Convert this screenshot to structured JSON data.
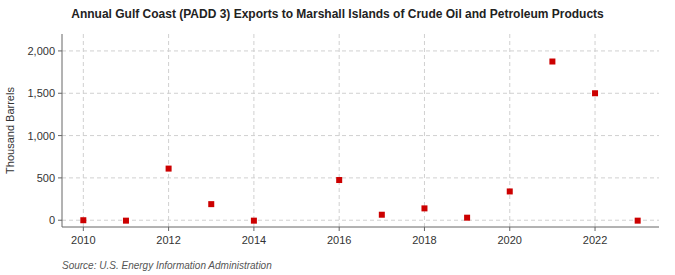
{
  "chart_data": {
    "type": "scatter",
    "title": "Annual Gulf Coast (PADD 3) Exports to Marshall Islands of Crude Oil and Petroleum Products",
    "ylabel": "Thousand Barrels",
    "source": "Source: U.S. Energy Information Administration",
    "x": [
      2010,
      2011,
      2012,
      2013,
      2014,
      2016,
      2017,
      2018,
      2019,
      2020,
      2021,
      2022,
      2023
    ],
    "values": [
      0,
      -5,
      610,
      190,
      -5,
      475,
      65,
      140,
      30,
      340,
      1875,
      1500,
      -5
    ],
    "color": "#cc0000",
    "marker": "square",
    "xlim": [
      2009.5,
      2023.5
    ],
    "ylim": [
      -80,
      2200
    ],
    "xticks": [
      2010,
      2012,
      2014,
      2016,
      2018,
      2020,
      2022
    ],
    "yticks": [
      0,
      500,
      {
        "value": 1000,
        "label": "1,000"
      },
      {
        "value": 1500,
        "label": "1,500"
      },
      {
        "value": 2000,
        "label": "2,000"
      }
    ],
    "grid": true
  }
}
